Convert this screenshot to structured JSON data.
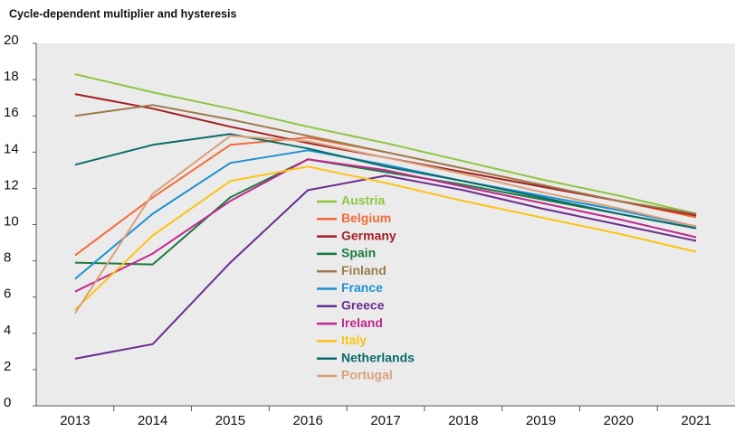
{
  "chart_data": {
    "type": "line",
    "title": "Cycle-dependent multiplier and hysteresis",
    "categories": [
      "2013",
      "2014",
      "2015",
      "2016",
      "2017",
      "2018",
      "2019",
      "2020",
      "2021"
    ],
    "ylim": [
      0,
      20
    ],
    "yticks": [
      0,
      2,
      4,
      6,
      8,
      10,
      12,
      14,
      16,
      18,
      20
    ],
    "series": [
      {
        "name": "Austria",
        "color": "#8dc63f",
        "values": [
          18.3,
          17.3,
          16.4,
          15.4,
          14.5,
          13.5,
          12.5,
          11.6,
          10.6
        ]
      },
      {
        "name": "Belgium",
        "color": "#f26b38",
        "values": [
          8.3,
          11.5,
          14.4,
          14.8,
          14.0,
          13.1,
          12.2,
          11.3,
          10.4
        ]
      },
      {
        "name": "Germany",
        "color": "#a31f24",
        "values": [
          17.2,
          16.4,
          15.4,
          14.5,
          13.7,
          12.9,
          12.1,
          11.3,
          10.5
        ]
      },
      {
        "name": "Spain",
        "color": "#1b7a3e",
        "values": [
          7.9,
          7.8,
          11.5,
          13.6,
          12.9,
          12.2,
          11.4,
          10.6,
          9.8
        ]
      },
      {
        "name": "Finland",
        "color": "#9c7a4b",
        "values": [
          16.0,
          16.6,
          15.8,
          14.9,
          14.0,
          13.1,
          12.2,
          11.3,
          10.6
        ]
      },
      {
        "name": "France",
        "color": "#1e90d2",
        "values": [
          7.0,
          10.6,
          13.4,
          14.1,
          13.3,
          12.4,
          11.6,
          10.8,
          9.9
        ]
      },
      {
        "name": "Greece",
        "color": "#6b2d91",
        "values": [
          2.6,
          3.4,
          7.9,
          11.9,
          12.7,
          11.9,
          10.9,
          10.0,
          9.1
        ]
      },
      {
        "name": "Ireland",
        "color": "#c0278e",
        "values": [
          6.3,
          8.4,
          11.3,
          13.6,
          13.0,
          12.1,
          11.2,
          10.3,
          9.3
        ]
      },
      {
        "name": "Italy",
        "color": "#fdc314",
        "values": [
          5.3,
          9.4,
          12.4,
          13.2,
          12.3,
          11.3,
          10.4,
          9.5,
          8.5
        ]
      },
      {
        "name": "Netherlands",
        "color": "#0a6b6b",
        "values": [
          13.3,
          14.4,
          15.0,
          14.2,
          13.2,
          12.4,
          11.5,
          10.6,
          9.8
        ]
      },
      {
        "name": "Portugal",
        "color": "#dda07a",
        "values": [
          5.1,
          11.7,
          14.9,
          14.6,
          13.7,
          12.8,
          11.8,
          10.9,
          9.9
        ]
      }
    ]
  }
}
